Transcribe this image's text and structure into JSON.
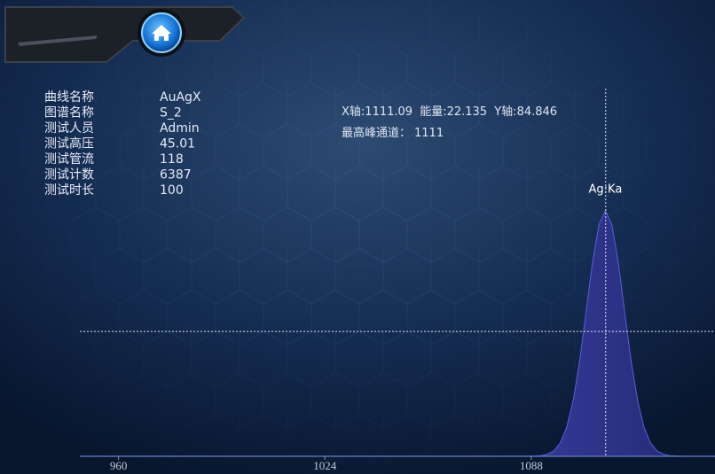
{
  "info": {
    "rows": [
      [
        "曲线名称",
        "AuAgX"
      ],
      [
        "图谱名称",
        "S_2"
      ],
      [
        "测试人员",
        "Admin"
      ],
      [
        "测试高压",
        "45.01"
      ],
      [
        "测试管流",
        "118"
      ],
      [
        "测试计数",
        "6387"
      ],
      [
        "测试时长",
        "100"
      ]
    ]
  },
  "cursor": {
    "x_label": "X轴:",
    "x": 1111.09,
    "energy_label": "能量:",
    "energy": 22.135,
    "y_label": "Y轴:",
    "y": 84.846
  },
  "peak": {
    "label": "最高峰通道：",
    "channel": 1111
  },
  "chart_data": {
    "type": "area",
    "x": [
      948,
      1087,
      1091,
      1093,
      1095,
      1097,
      1099,
      1101,
      1103,
      1105,
      1107,
      1109,
      1111,
      1113,
      1115,
      1117,
      1119,
      1121,
      1123,
      1125,
      1127,
      1129,
      1131,
      1135,
      1145
    ],
    "values": [
      0,
      0,
      0.4,
      1.4,
      3.7,
      9.1,
      19.6,
      37.8,
      64.5,
      97.8,
      131.7,
      157.4,
      167,
      157.4,
      131.7,
      97.8,
      64.5,
      37.8,
      19.6,
      9.1,
      3.7,
      1.4,
      0.4,
      0,
      0
    ],
    "color": "#5a5fd8",
    "xlim": [
      948,
      1145
    ],
    "ylim": [
      0,
      250
    ],
    "xticks": [
      960,
      1024,
      1088
    ],
    "annotation": "Ag:Ka"
  }
}
